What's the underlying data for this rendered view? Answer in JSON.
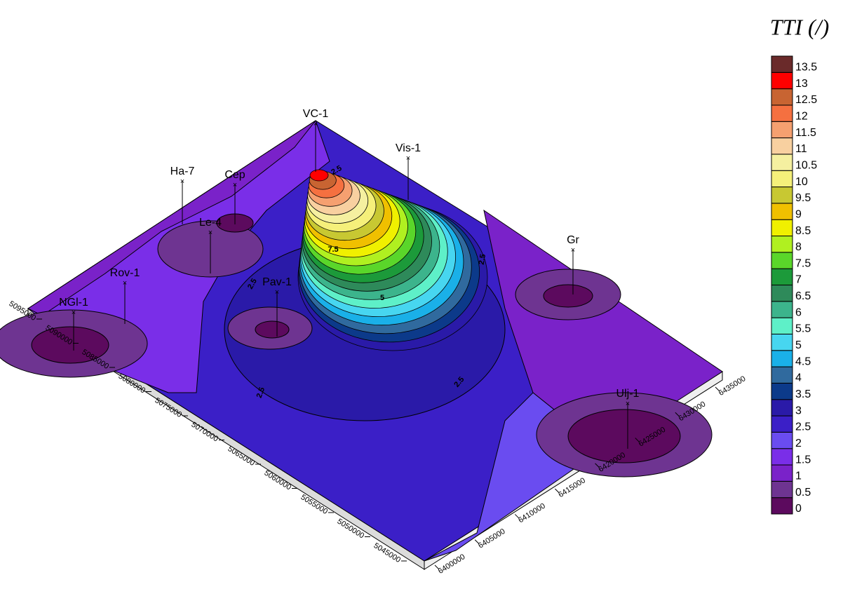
{
  "chart_data": {
    "type": "surface3d",
    "title": "TTI (/)",
    "zticks": [
      0,
      0.5,
      1,
      1.5,
      2,
      2.5,
      3,
      3.5,
      4,
      4.5,
      5,
      5.5,
      6,
      6.5,
      7,
      7.5,
      8,
      8.5,
      9,
      9.5,
      10,
      10.5,
      11,
      11.5,
      12,
      12.5,
      13,
      13.5
    ],
    "colors": [
      "#5c0a5e",
      "#6e3491",
      "#7a22c9",
      "#7a2ee8",
      "#6a4cf0",
      "#3b1fc7",
      "#2a1aa8",
      "#0c3a8a",
      "#306a9e",
      "#1ab0e8",
      "#47d6f0",
      "#5ef0c8",
      "#3cb48c",
      "#2e8a5a",
      "#1c9a3a",
      "#5ad62a",
      "#b0f020",
      "#f0f000",
      "#f0c000",
      "#c8c832",
      "#f5f07a",
      "#f5f0a0",
      "#f8d0a0",
      "#f5a070",
      "#f57040",
      "#c86432",
      "#ff0000",
      "#6a2a2a"
    ],
    "xticks": [
      6400000,
      6405000,
      6410000,
      6415000,
      6420000,
      6425000,
      6430000,
      6435000
    ],
    "yticks": [
      5095000,
      5090000,
      5085000,
      5080000,
      5075000,
      5070000,
      5065000,
      5060000,
      5055000,
      5050000,
      5045000
    ],
    "wells": [
      "NGl-1",
      "Rov-1",
      "Ha-7",
      "Cep",
      "Le-4",
      "VC-1",
      "Vis-1",
      "Pav-1",
      "Gr",
      "Ulj-1"
    ],
    "contour_labels": [
      2.5,
      2.5,
      2.5,
      2.5,
      2.5,
      7.5,
      5
    ]
  }
}
